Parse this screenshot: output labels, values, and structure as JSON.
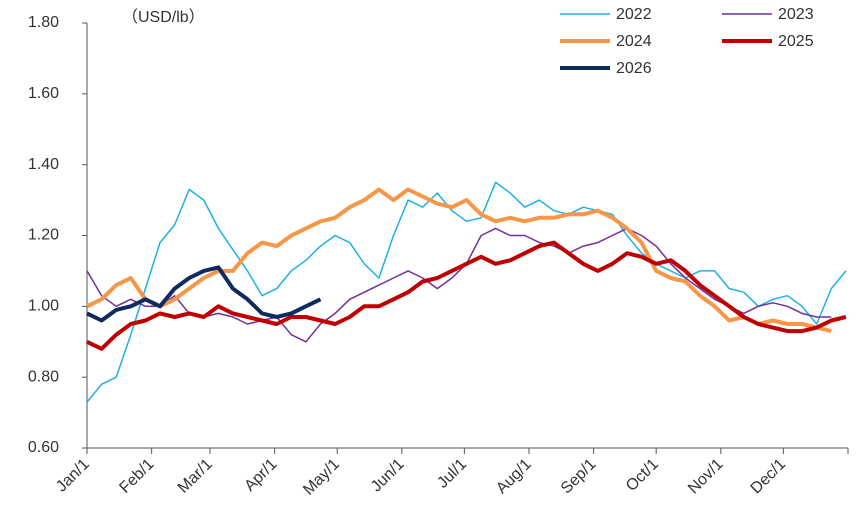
{
  "chart_data": {
    "type": "line",
    "annotation": "（USD/lb）",
    "x": [
      0,
      7,
      14,
      21,
      28,
      35,
      42,
      49,
      56,
      63,
      70,
      77,
      84,
      91,
      98,
      105,
      112,
      119,
      126,
      133,
      140,
      147,
      154,
      161,
      168,
      175,
      182,
      189,
      196,
      203,
      210,
      217,
      224,
      231,
      238,
      245,
      252,
      259,
      266,
      273,
      280,
      287,
      294,
      301,
      308,
      315,
      322,
      329,
      336,
      343,
      350,
      357,
      364
    ],
    "xlim": [
      0,
      365
    ],
    "xticks": [
      {
        "value": 0,
        "label": "Jan/1"
      },
      {
        "value": 31,
        "label": "Feb/1"
      },
      {
        "value": 59,
        "label": "Mar/1"
      },
      {
        "value": 90,
        "label": "Apr/1"
      },
      {
        "value": 120,
        "label": "May/1"
      },
      {
        "value": 151,
        "label": "Jun/1"
      },
      {
        "value": 181,
        "label": "Jul/1"
      },
      {
        "value": 212,
        "label": "Aug/1"
      },
      {
        "value": 243,
        "label": "Sep/1"
      },
      {
        "value": 273,
        "label": "Oct/1"
      },
      {
        "value": 304,
        "label": "Nov/1"
      },
      {
        "value": 334,
        "label": "Dec/1"
      }
    ],
    "ylim": [
      0.6,
      1.8
    ],
    "yticks": [
      {
        "value": 0.6,
        "label": "0.60"
      },
      {
        "value": 0.8,
        "label": "0.80"
      },
      {
        "value": 1.0,
        "label": "1.00"
      },
      {
        "value": 1.2,
        "label": "1.20"
      },
      {
        "value": 1.4,
        "label": "1.40"
      },
      {
        "value": 1.6,
        "label": "1.60"
      },
      {
        "value": 1.8,
        "label": "1.80"
      }
    ],
    "grid": false,
    "legend": "top-right",
    "series": [
      {
        "name": "2022",
        "color": "#1fb0e6",
        "width": 1.5,
        "values": [
          0.73,
          0.78,
          0.8,
          0.92,
          1.05,
          1.18,
          1.23,
          1.33,
          1.3,
          1.22,
          1.16,
          1.1,
          1.03,
          1.05,
          1.1,
          1.13,
          1.17,
          1.2,
          1.18,
          1.12,
          1.08,
          1.2,
          1.3,
          1.28,
          1.32,
          1.27,
          1.24,
          1.25,
          1.35,
          1.32,
          1.28,
          1.3,
          1.27,
          1.26,
          1.28,
          1.27,
          1.26,
          1.2,
          1.15,
          1.12,
          1.1,
          1.08,
          1.1,
          1.1,
          1.05,
          1.04,
          1.0,
          1.02,
          1.03,
          1.0,
          0.95,
          1.05,
          1.1
        ]
      },
      {
        "name": "2023",
        "color": "#7030a0",
        "width": 1.5,
        "values": [
          1.1,
          1.03,
          1.0,
          1.02,
          1.0,
          1.0,
          1.03,
          0.98,
          0.97,
          0.98,
          0.97,
          0.95,
          0.96,
          0.97,
          0.92,
          0.9,
          0.95,
          0.98,
          1.02,
          1.04,
          1.06,
          1.08,
          1.1,
          1.08,
          1.05,
          1.08,
          1.12,
          1.2,
          1.22,
          1.2,
          1.2,
          1.18,
          1.17,
          1.15,
          1.17,
          1.18,
          1.2,
          1.22,
          1.2,
          1.17,
          1.12,
          1.08,
          1.05,
          1.02,
          1.0,
          0.98,
          1.0,
          1.01,
          1.0,
          0.98,
          0.97,
          0.97,
          null
        ]
      },
      {
        "name": "2024",
        "color": "#f79646",
        "width": 4,
        "values": [
          1.0,
          1.02,
          1.06,
          1.08,
          1.02,
          1.0,
          1.02,
          1.05,
          1.08,
          1.1,
          1.1,
          1.15,
          1.18,
          1.17,
          1.2,
          1.22,
          1.24,
          1.25,
          1.28,
          1.3,
          1.33,
          1.3,
          1.33,
          1.31,
          1.29,
          1.28,
          1.3,
          1.26,
          1.24,
          1.25,
          1.24,
          1.25,
          1.25,
          1.26,
          1.26,
          1.27,
          1.25,
          1.22,
          1.18,
          1.1,
          1.08,
          1.07,
          1.03,
          1.0,
          0.96,
          0.97,
          0.95,
          0.96,
          0.95,
          0.95,
          0.94,
          0.93,
          null
        ]
      },
      {
        "name": "2025",
        "color": "#c00000",
        "width": 4,
        "values": [
          0.9,
          0.88,
          0.92,
          0.95,
          0.96,
          0.98,
          0.97,
          0.98,
          0.97,
          1.0,
          0.98,
          0.97,
          0.96,
          0.95,
          0.97,
          0.97,
          0.96,
          0.95,
          0.97,
          1.0,
          1.0,
          1.02,
          1.04,
          1.07,
          1.08,
          1.1,
          1.12,
          1.14,
          1.12,
          1.13,
          1.15,
          1.17,
          1.18,
          1.15,
          1.12,
          1.1,
          1.12,
          1.15,
          1.14,
          1.12,
          1.13,
          1.1,
          1.06,
          1.03,
          1.0,
          0.97,
          0.95,
          0.94,
          0.93,
          0.93,
          0.94,
          0.96,
          0.97
        ]
      },
      {
        "name": "2026",
        "color": "#0f2a5e",
        "width": 4,
        "values": [
          0.98,
          0.96,
          0.99,
          1.0,
          1.02,
          1.0,
          1.05,
          1.08,
          1.1,
          1.11,
          1.05,
          1.02,
          0.98,
          0.97,
          0.98,
          1.0,
          1.02,
          null,
          null,
          null,
          null,
          null,
          null,
          null,
          null,
          null,
          null,
          null,
          null,
          null,
          null,
          null,
          null,
          null,
          null,
          null,
          null,
          null,
          null,
          null,
          null,
          null,
          null,
          null,
          null,
          null,
          null,
          null,
          null,
          null,
          null,
          null,
          null
        ]
      }
    ]
  }
}
